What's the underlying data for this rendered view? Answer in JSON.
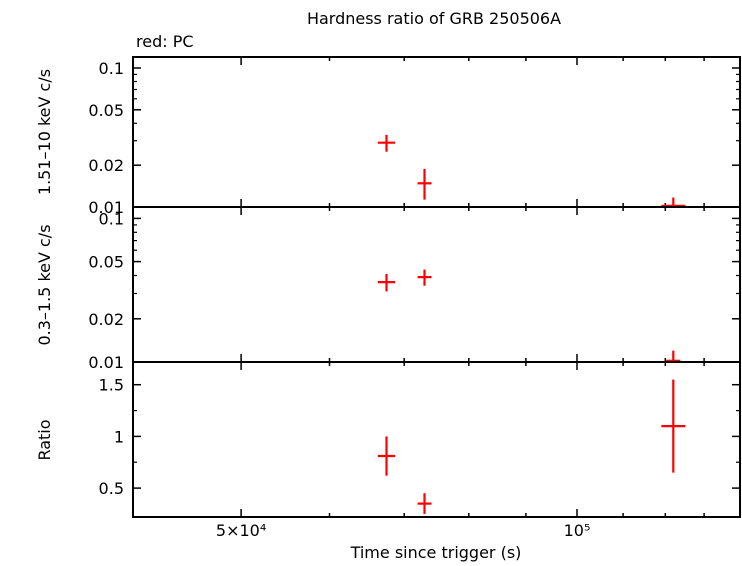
{
  "chart_data": {
    "type": "scatter",
    "title": "Hardness ratio of GRB 250506A",
    "legend_note": "red: PC",
    "xlabel": "Time since trigger (s)",
    "x_scale": "log",
    "xlim": [
      40000,
      140000
    ],
    "x_ticks": [
      {
        "value": 50000,
        "label": "5×10⁴"
      },
      {
        "value": 100000,
        "label": "10⁵"
      }
    ],
    "series_color": "#ff0000",
    "panels": [
      {
        "id": "hard",
        "ylabel": "1.51–10 keV c/s",
        "y_scale": "log",
        "ylim": [
          0.01,
          0.12
        ],
        "y_ticks": [
          {
            "value": 0.1,
            "label": "0.1"
          },
          {
            "value": 0.05,
            "label": "0.05"
          },
          {
            "value": 0.02,
            "label": "0.02"
          },
          {
            "value": 0.01,
            "label": "0.01"
          }
        ],
        "points": [
          {
            "x": 67500,
            "xerr": [
              1200,
              1200
            ],
            "y": 0.029,
            "yerr": [
              0.004,
              0.004
            ]
          },
          {
            "x": 73000,
            "xerr": [
              600,
              600
            ],
            "y": 0.0148,
            "yerr": [
              0.0035,
              0.004
            ]
          },
          {
            "x": 122000,
            "xerr": [
              3500,
              3500
            ],
            "y": 0.0102,
            "yerr": [
              0.0002,
              0.0015
            ]
          }
        ]
      },
      {
        "id": "soft",
        "ylabel": "0.3–1.5 keV c/s",
        "y_scale": "log",
        "ylim": [
          0.01,
          0.12
        ],
        "y_ticks": [
          {
            "value": 0.1,
            "label": "0.1"
          },
          {
            "value": 0.05,
            "label": "0.05"
          },
          {
            "value": 0.02,
            "label": "0.02"
          },
          {
            "value": 0.01,
            "label": "0.01"
          }
        ],
        "points": [
          {
            "x": 67500,
            "xerr": [
              1200,
              1200
            ],
            "y": 0.036,
            "yerr": [
              0.005,
              0.005
            ]
          },
          {
            "x": 73000,
            "xerr": [
              600,
              600
            ],
            "y": 0.039,
            "yerr": [
              0.005,
              0.005
            ]
          },
          {
            "x": 122000,
            "xerr": [
              0,
              0
            ],
            "y": 0.0102,
            "yerr": [
              0.0002,
              0.0018
            ]
          }
        ]
      },
      {
        "id": "ratio",
        "ylabel": "Ratio",
        "y_scale": "linear",
        "ylim": [
          0.22,
          1.72
        ],
        "y_ticks": [
          {
            "value": 1.5,
            "label": "1.5"
          },
          {
            "value": 1,
            "label": "1"
          },
          {
            "value": 0.5,
            "label": "0.5"
          }
        ],
        "points": [
          {
            "x": 67500,
            "xerr": [
              1200,
              1200
            ],
            "y": 0.81,
            "yerr": [
              0.19,
              0.19
            ]
          },
          {
            "x": 73000,
            "xerr": [
              600,
              600
            ],
            "y": 0.35,
            "yerr": [
              0.1,
              0.1
            ]
          },
          {
            "x": 122000,
            "xerr": [
              3500,
              3500
            ],
            "y": 1.1,
            "yerr": [
              0.45,
              0.45
            ]
          }
        ]
      }
    ]
  }
}
